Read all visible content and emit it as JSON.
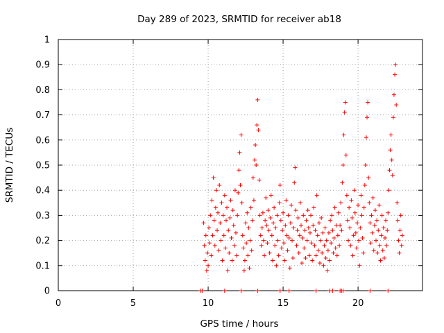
{
  "chart_data": {
    "type": "scatter",
    "title": "Day 289 of 2023, SRMTID for receiver ab18",
    "xlabel": "GPS time / hours",
    "ylabel": "SRMTID / TECUs",
    "xlim": [
      0,
      24.3
    ],
    "ylim": [
      0,
      1
    ],
    "x_ticks": [
      0,
      5,
      10,
      15,
      20
    ],
    "y_ticks": [
      0,
      0.1,
      0.2,
      0.3,
      0.4,
      0.5,
      0.6,
      0.7,
      0.8,
      0.9,
      1
    ],
    "x_tick_labels": [
      "0",
      "5",
      "10",
      "15",
      "20"
    ],
    "y_tick_labels": [
      "0",
      "0.1",
      "0.2",
      "0.3",
      "0.4",
      "0.5",
      "0.6",
      "0.7",
      "0.8",
      "0.9",
      "1"
    ],
    "grid": true,
    "marker": "+",
    "color": "#ff0000",
    "series": [
      {
        "name": "SRMTID",
        "points": [
          [
            9.5,
            0.0
          ],
          [
            9.6,
            0.0
          ],
          [
            11.1,
            0.0
          ],
          [
            12.2,
            0.0
          ],
          [
            13.3,
            0.0
          ],
          [
            14.8,
            0.0
          ],
          [
            15.4,
            0.0
          ],
          [
            17.2,
            0.0
          ],
          [
            18.1,
            0.0
          ],
          [
            18.3,
            0.0
          ],
          [
            18.8,
            0.0
          ],
          [
            18.9,
            0.0
          ],
          [
            19.0,
            0.0
          ],
          [
            20.8,
            0.0
          ],
          [
            22.0,
            0.0
          ],
          [
            9.7,
            0.27
          ],
          [
            9.75,
            0.18
          ],
          [
            9.8,
            0.12
          ],
          [
            9.85,
            0.22
          ],
          [
            9.9,
            0.08
          ],
          [
            9.95,
            0.15
          ],
          [
            10.0,
            0.1
          ],
          [
            10.05,
            0.25
          ],
          [
            10.1,
            0.19
          ],
          [
            10.15,
            0.3
          ],
          [
            10.2,
            0.14
          ],
          [
            10.25,
            0.36
          ],
          [
            10.3,
            0.22
          ],
          [
            10.35,
            0.45
          ],
          [
            10.4,
            0.28
          ],
          [
            10.45,
            0.18
          ],
          [
            10.5,
            0.33
          ],
          [
            10.55,
            0.4
          ],
          [
            10.6,
            0.24
          ],
          [
            10.65,
            0.31
          ],
          [
            10.7,
            0.16
          ],
          [
            10.75,
            0.42
          ],
          [
            10.8,
            0.27
          ],
          [
            10.85,
            0.2
          ],
          [
            10.9,
            0.35
          ],
          [
            10.95,
            0.12
          ],
          [
            11.0,
            0.3
          ],
          [
            11.05,
            0.22
          ],
          [
            11.1,
            0.38
          ],
          [
            11.15,
            0.17
          ],
          [
            11.2,
            0.28
          ],
          [
            11.25,
            0.33
          ],
          [
            11.3,
            0.08
          ],
          [
            11.35,
            0.24
          ],
          [
            11.4,
            0.15
          ],
          [
            11.45,
            0.29
          ],
          [
            11.5,
            0.36
          ],
          [
            11.55,
            0.21
          ],
          [
            11.6,
            0.12
          ],
          [
            11.65,
            0.32
          ],
          [
            11.7,
            0.26
          ],
          [
            11.75,
            0.18
          ],
          [
            11.8,
            0.4
          ],
          [
            11.85,
            0.23
          ],
          [
            11.9,
            0.14
          ],
          [
            11.95,
            0.3
          ],
          [
            12.0,
            0.39
          ],
          [
            12.05,
            0.48
          ],
          [
            12.1,
            0.55
          ],
          [
            12.15,
            0.42
          ],
          [
            12.2,
            0.62
          ],
          [
            12.25,
            0.35
          ],
          [
            12.3,
            0.22
          ],
          [
            12.35,
            0.17
          ],
          [
            12.4,
            0.08
          ],
          [
            12.45,
            0.12
          ],
          [
            12.5,
            0.27
          ],
          [
            12.55,
            0.19
          ],
          [
            12.6,
            0.31
          ],
          [
            12.65,
            0.14
          ],
          [
            12.7,
            0.25
          ],
          [
            12.75,
            0.09
          ],
          [
            12.8,
            0.2
          ],
          [
            12.85,
            0.33
          ],
          [
            12.9,
            0.16
          ],
          [
            12.95,
            0.28
          ],
          [
            13.0,
            0.45
          ],
          [
            13.05,
            0.36
          ],
          [
            13.1,
            0.52
          ],
          [
            13.15,
            0.58
          ],
          [
            13.2,
            0.5
          ],
          [
            13.25,
            0.66
          ],
          [
            13.3,
            0.76
          ],
          [
            13.35,
            0.64
          ],
          [
            13.4,
            0.44
          ],
          [
            13.45,
            0.3
          ],
          [
            13.5,
            0.22
          ],
          [
            13.55,
            0.18
          ],
          [
            13.6,
            0.25
          ],
          [
            13.65,
            0.31
          ],
          [
            13.7,
            0.2
          ],
          [
            13.75,
            0.14
          ],
          [
            13.8,
            0.28
          ],
          [
            13.85,
            0.37
          ],
          [
            13.9,
            0.26
          ],
          [
            13.95,
            0.19
          ],
          [
            14.0,
            0.32
          ],
          [
            14.05,
            0.24
          ],
          [
            14.1,
            0.15
          ],
          [
            14.15,
            0.29
          ],
          [
            14.2,
            0.38
          ],
          [
            14.25,
            0.22
          ],
          [
            14.3,
            0.12
          ],
          [
            14.35,
            0.27
          ],
          [
            14.4,
            0.33
          ],
          [
            14.45,
            0.18
          ],
          [
            14.5,
            0.25
          ],
          [
            14.55,
            0.1
          ],
          [
            14.6,
            0.3
          ],
          [
            14.65,
            0.2
          ],
          [
            14.7,
            0.14
          ],
          [
            14.75,
            0.35
          ],
          [
            14.8,
            0.42
          ],
          [
            14.85,
            0.28
          ],
          [
            14.9,
            0.17
          ],
          [
            14.95,
            0.24
          ],
          [
            15.0,
            0.31
          ],
          [
            15.05,
            0.19
          ],
          [
            15.1,
            0.12
          ],
          [
            15.15,
            0.26
          ],
          [
            15.2,
            0.36
          ],
          [
            15.25,
            0.22
          ],
          [
            15.3,
            0.16
          ],
          [
            15.35,
            0.3
          ],
          [
            15.4,
            0.21
          ],
          [
            15.45,
            0.09
          ],
          [
            15.5,
            0.27
          ],
          [
            15.55,
            0.34
          ],
          [
            15.6,
            0.2
          ],
          [
            15.65,
            0.13
          ],
          [
            15.7,
            0.25
          ],
          [
            15.75,
            0.43
          ],
          [
            15.8,
            0.49
          ],
          [
            15.85,
            0.32
          ],
          [
            15.9,
            0.18
          ],
          [
            15.95,
            0.24
          ],
          [
            16.0,
            0.29
          ],
          [
            16.05,
            0.15
          ],
          [
            16.1,
            0.22
          ],
          [
            16.15,
            0.35
          ],
          [
            16.2,
            0.26
          ],
          [
            16.25,
            0.11
          ],
          [
            16.3,
            0.21
          ],
          [
            16.35,
            0.3
          ],
          [
            16.4,
            0.17
          ],
          [
            16.45,
            0.24
          ],
          [
            16.5,
            0.13
          ],
          [
            16.55,
            0.28
          ],
          [
            16.6,
            0.2
          ],
          [
            16.65,
            0.32
          ],
          [
            16.7,
            0.25
          ],
          [
            16.75,
            0.14
          ],
          [
            16.8,
            0.23
          ],
          [
            16.85,
            0.3
          ],
          [
            16.9,
            0.19
          ],
          [
            16.95,
            0.12
          ],
          [
            17.0,
            0.26
          ],
          [
            17.05,
            0.33
          ],
          [
            17.1,
            0.18
          ],
          [
            17.15,
            0.24
          ],
          [
            17.2,
            0.14
          ],
          [
            17.25,
            0.38
          ],
          [
            17.3,
            0.22
          ],
          [
            17.35,
            0.16
          ],
          [
            17.4,
            0.27
          ],
          [
            17.45,
            0.11
          ],
          [
            17.5,
            0.2
          ],
          [
            17.55,
            0.29
          ],
          [
            17.6,
            0.15
          ],
          [
            17.65,
            0.23
          ],
          [
            17.7,
            0.1
          ],
          [
            17.75,
            0.18
          ],
          [
            17.8,
            0.25
          ],
          [
            17.85,
            0.13
          ],
          [
            17.9,
            0.2
          ],
          [
            17.95,
            0.08
          ],
          [
            18.0,
            0.16
          ],
          [
            18.05,
            0.23
          ],
          [
            18.1,
            0.12
          ],
          [
            18.15,
            0.28
          ],
          [
            18.2,
            0.19
          ],
          [
            18.25,
            0.3
          ],
          [
            18.3,
            0.24
          ],
          [
            18.35,
            0.15
          ],
          [
            18.4,
            0.21
          ],
          [
            18.45,
            0.33
          ],
          [
            18.5,
            0.17
          ],
          [
            18.55,
            0.26
          ],
          [
            18.6,
            0.14
          ],
          [
            18.65,
            0.22
          ],
          [
            18.7,
            0.31
          ],
          [
            18.75,
            0.18
          ],
          [
            18.8,
            0.26
          ],
          [
            18.85,
            0.35
          ],
          [
            18.9,
            0.24
          ],
          [
            18.95,
            0.43
          ],
          [
            19.0,
            0.5
          ],
          [
            19.05,
            0.62
          ],
          [
            19.1,
            0.71
          ],
          [
            19.15,
            0.75
          ],
          [
            19.2,
            0.54
          ],
          [
            19.25,
            0.38
          ],
          [
            19.3,
            0.28
          ],
          [
            19.35,
            0.2
          ],
          [
            19.4,
            0.33
          ],
          [
            19.45,
            0.25
          ],
          [
            19.5,
            0.18
          ],
          [
            19.55,
            0.36
          ],
          [
            19.6,
            0.29
          ],
          [
            19.65,
            0.14
          ],
          [
            19.7,
            0.22
          ],
          [
            19.75,
            0.4
          ],
          [
            19.8,
            0.31
          ],
          [
            19.85,
            0.23
          ],
          [
            19.9,
            0.17
          ],
          [
            19.95,
            0.27
          ],
          [
            20.0,
            0.34
          ],
          [
            20.05,
            0.2
          ],
          [
            20.1,
            0.1
          ],
          [
            20.15,
            0.25
          ],
          [
            20.2,
            0.38
          ],
          [
            20.25,
            0.3
          ],
          [
            20.3,
            0.21
          ],
          [
            20.35,
            0.15
          ],
          [
            20.4,
            0.33
          ],
          [
            20.45,
            0.42
          ],
          [
            20.5,
            0.5
          ],
          [
            20.55,
            0.61
          ],
          [
            20.6,
            0.69
          ],
          [
            20.65,
            0.75
          ],
          [
            20.7,
            0.45
          ],
          [
            20.75,
            0.35
          ],
          [
            20.8,
            0.27
          ],
          [
            20.85,
            0.19
          ],
          [
            20.9,
            0.3
          ],
          [
            20.95,
            0.23
          ],
          [
            21.0,
            0.37
          ],
          [
            21.05,
            0.16
          ],
          [
            21.1,
            0.26
          ],
          [
            21.15,
            0.32
          ],
          [
            21.2,
            0.2
          ],
          [
            21.25,
            0.28
          ],
          [
            21.3,
            0.15
          ],
          [
            21.35,
            0.24
          ],
          [
            21.4,
            0.34
          ],
          [
            21.45,
            0.18
          ],
          [
            21.5,
            0.12
          ],
          [
            21.55,
            0.22
          ],
          [
            21.6,
            0.3
          ],
          [
            21.65,
            0.16
          ],
          [
            21.7,
            0.25
          ],
          [
            21.75,
            0.13
          ],
          [
            21.8,
            0.21
          ],
          [
            21.85,
            0.28
          ],
          [
            21.9,
            0.18
          ],
          [
            21.95,
            0.24
          ],
          [
            22.0,
            0.31
          ],
          [
            22.05,
            0.4
          ],
          [
            22.1,
            0.48
          ],
          [
            22.15,
            0.56
          ],
          [
            22.2,
            0.62
          ],
          [
            22.25,
            0.52
          ],
          [
            22.3,
            0.46
          ],
          [
            22.35,
            0.69
          ],
          [
            22.4,
            0.78
          ],
          [
            22.45,
            0.86
          ],
          [
            22.5,
            0.9
          ],
          [
            22.55,
            0.74
          ],
          [
            22.6,
            0.35
          ],
          [
            22.65,
            0.28
          ],
          [
            22.7,
            0.2
          ],
          [
            22.75,
            0.15
          ],
          [
            22.8,
            0.24
          ],
          [
            22.85,
            0.3
          ],
          [
            22.9,
            0.18
          ],
          [
            22.95,
            0.22
          ]
        ]
      }
    ]
  }
}
